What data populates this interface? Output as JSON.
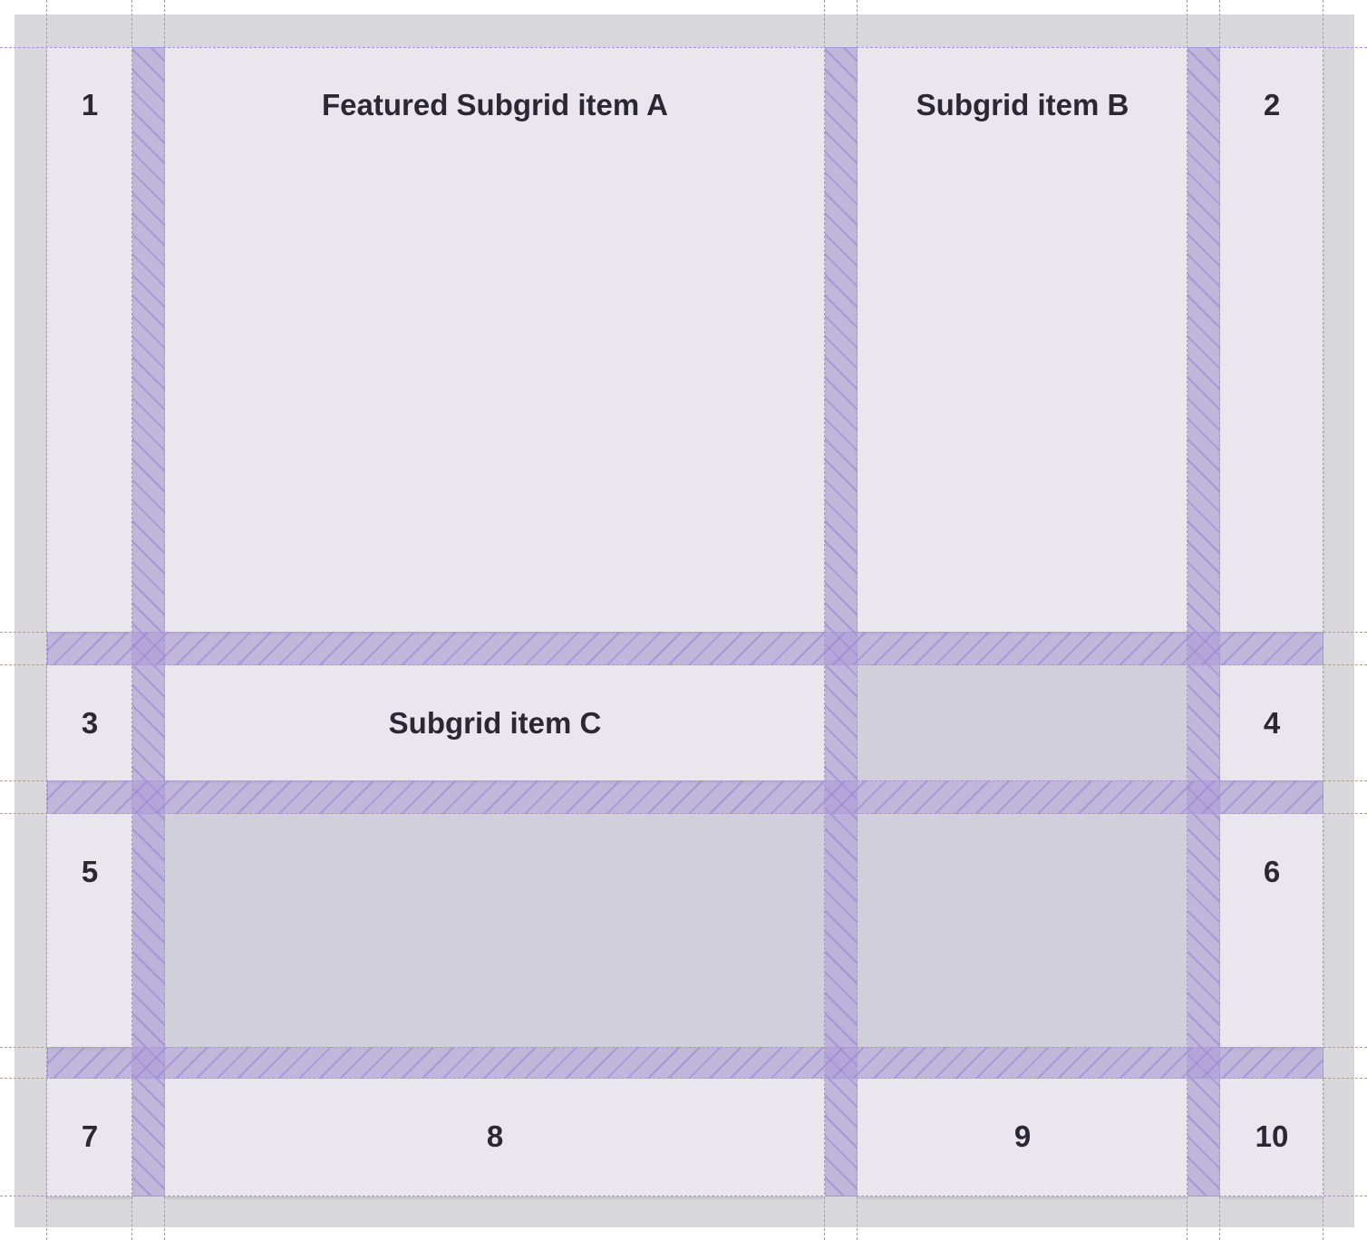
{
  "diagram": {
    "items": {
      "n1": "1",
      "a": "Featured Subgrid item A",
      "b": "Subgrid item B",
      "n2": "2",
      "n3": "3",
      "c": "Subgrid item C",
      "n4": "4",
      "n5": "5",
      "n6": "6",
      "n7": "7",
      "n8": "8",
      "n9": "9",
      "n10": "10"
    },
    "colors": {
      "item_bg": "#e9e6ee",
      "empty_bg": "#d1cfda",
      "gap_overlay": "#aa96d7",
      "grid_line": "#a995d6",
      "frame_bg": "#d8d8dc"
    }
  }
}
